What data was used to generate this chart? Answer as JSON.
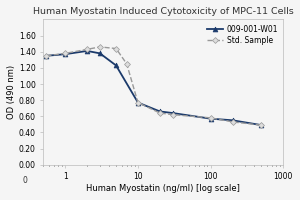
{
  "title": "Human Myostatin Induced Cytotoxicity of MPC-11 Cells",
  "xlabel": "Human Myostatin (ng/ml) [log scale]",
  "ylabel": "OD (490 nm)",
  "ylim": [
    0.0,
    1.8
  ],
  "yticks": [
    0.0,
    0.2,
    0.4,
    0.6,
    0.8,
    1.0,
    1.2,
    1.4,
    1.6
  ],
  "series1_label": "009-001-W01",
  "series1_color": "#1b3a6b",
  "series1_x": [
    0.55,
    1.0,
    2.0,
    3.0,
    5.0,
    10.0,
    20.0,
    30.0,
    100.0,
    200.0,
    500.0
  ],
  "series1_y": [
    1.35,
    1.37,
    1.41,
    1.38,
    1.23,
    0.77,
    0.66,
    0.64,
    0.57,
    0.55,
    0.49
  ],
  "series2_label": "Std. Sample",
  "series2_color": "#999999",
  "series2_x": [
    0.55,
    1.0,
    2.0,
    3.0,
    5.0,
    7.0,
    10.0,
    20.0,
    30.0,
    100.0,
    200.0,
    500.0
  ],
  "series2_y": [
    1.35,
    1.38,
    1.43,
    1.46,
    1.44,
    1.25,
    0.77,
    0.64,
    0.62,
    0.58,
    0.53,
    0.49
  ],
  "bg_color": "#f5f5f5",
  "plot_bg": "#f5f5f5",
  "title_fontsize": 6.8,
  "label_fontsize": 6.0,
  "tick_fontsize": 5.5,
  "legend_fontsize": 5.5
}
